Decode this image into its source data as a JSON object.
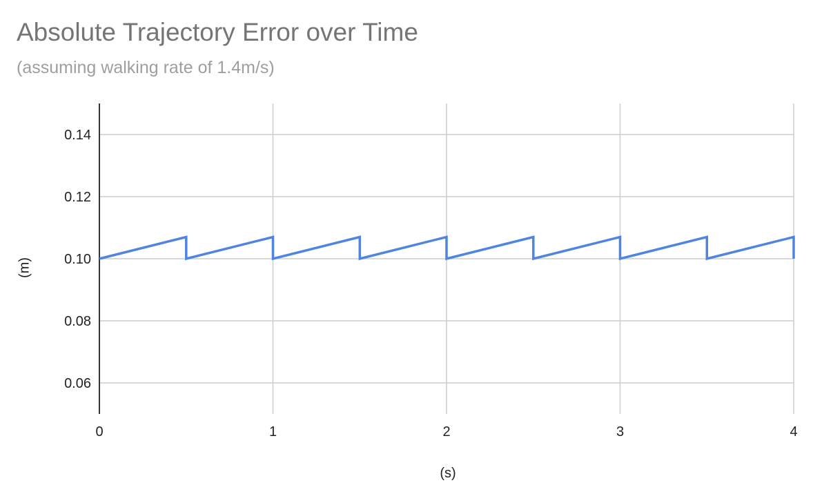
{
  "chart_data": {
    "type": "line",
    "title": "Absolute Trajectory Error over Time",
    "subtitle": "(assuming walking rate of 1.4m/s)",
    "xlabel": "(s)",
    "ylabel": "(m)",
    "xlim": [
      0,
      4
    ],
    "ylim": [
      0.05,
      0.15
    ],
    "xticks": [
      0,
      1,
      2,
      3,
      4
    ],
    "xtick_labels": [
      "0",
      "1",
      "2",
      "3",
      "4"
    ],
    "yticks": [
      0.06,
      0.08,
      0.1,
      0.12,
      0.14
    ],
    "ytick_labels": [
      "0.06",
      "0.08",
      "0.10",
      "0.12",
      "0.14"
    ],
    "grid": true,
    "legend": "none",
    "series": [
      {
        "color": "#4f84e0",
        "x": [
          0,
          0.5,
          0.5,
          1.0,
          1.0,
          1.5,
          1.5,
          2.0,
          2.0,
          2.5,
          2.5,
          3.0,
          3.0,
          3.5,
          3.5,
          4.0,
          4.0
        ],
        "y": [
          0.1,
          0.107,
          0.1,
          0.107,
          0.1,
          0.107,
          0.1,
          0.107,
          0.1,
          0.107,
          0.1,
          0.107,
          0.1,
          0.107,
          0.1,
          0.107,
          0.1
        ]
      }
    ]
  }
}
